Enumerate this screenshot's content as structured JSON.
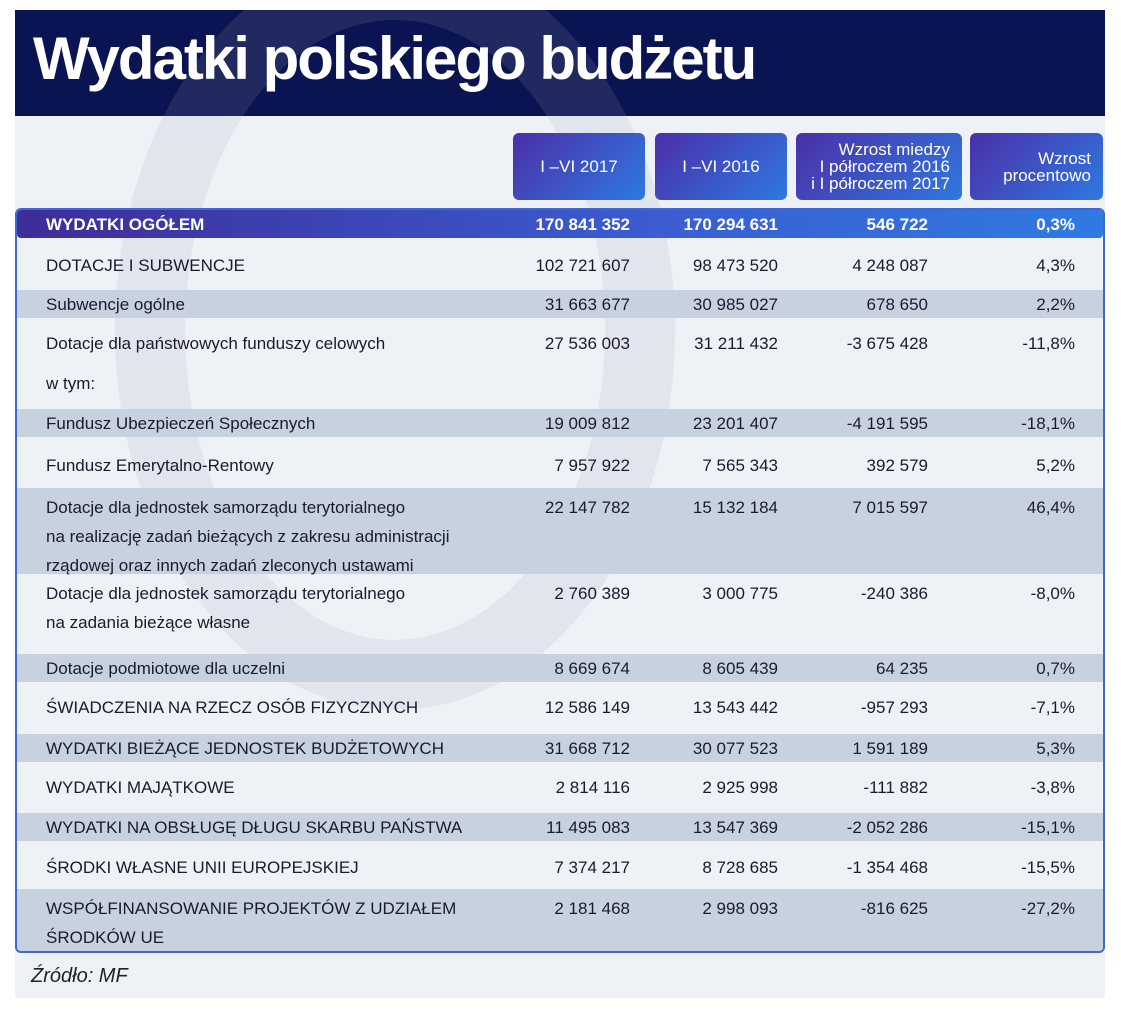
{
  "title": "Wydatki polskiego budżetu",
  "source": "Źródło: MF",
  "chart_data": {
    "type": "table",
    "columns": [
      "I –VI 2017",
      "I –VI 2016",
      "Wzrost miedzy\nI półroczem 2016\ni I półroczem 2017",
      "Wzrost\nprocentowo"
    ],
    "rows": [
      {
        "label": "WYDATKI OGÓŁEM",
        "values": [
          "170 841 352",
          "170 294 631",
          "546 722",
          "0,3%"
        ]
      },
      {
        "label": "DOTACJE I SUBWENCJE",
        "values": [
          "102 721 607",
          "98 473 520",
          "4 248 087",
          "4,3%"
        ]
      },
      {
        "label": "Subwencje ogólne",
        "values": [
          "31 663 677",
          "30 985 027",
          "678 650",
          "2,2%"
        ]
      },
      {
        "label": "Dotacje dla państwowych funduszy celowych",
        "values": [
          "27 536 003",
          "31 211 432",
          "-3 675 428",
          "-11,8%"
        ]
      },
      {
        "label": "w tym:",
        "values": [
          "",
          "",
          "",
          ""
        ]
      },
      {
        "label": "Fundusz Ubezpieczeń Społecznych",
        "values": [
          "19 009 812",
          "23 201 407",
          "-4 191 595",
          "-18,1%"
        ]
      },
      {
        "label": "Fundusz Emerytalno-Rentowy",
        "values": [
          "7 957 922",
          "7 565 343",
          "392 579",
          "5,2%"
        ]
      },
      {
        "label": "Dotacje dla jednostek samorządu terytorialnego\nna realizację zadań bieżących  z zakresu administracji\nrządowej oraz innych zadań zleconych ustawami",
        "values": [
          "22 147 782",
          "15 132 184",
          "7 015 597",
          "46,4%"
        ]
      },
      {
        "label": "Dotacje dla jednostek samorządu terytorialnego\nna zadania bieżące własne",
        "values": [
          "2 760 389",
          "3 000 775",
          "-240 386",
          "-8,0%"
        ]
      },
      {
        "label": "Dotacje podmiotowe dla uczelni",
        "values": [
          "8 669 674",
          "8 605 439",
          "64 235",
          "0,7%"
        ]
      },
      {
        "label": "ŚWIADCZENIA NA RZECZ OSÓB FIZYCZNYCH",
        "values": [
          "12 586 149",
          "13 543 442",
          "-957 293",
          "-7,1%"
        ]
      },
      {
        "label": "WYDATKI BIEŻĄCE JEDNOSTEK BUDŻETOWYCH",
        "values": [
          "31 668 712",
          "30 077 523",
          "1 591 189",
          "5,3%"
        ]
      },
      {
        "label": "WYDATKI MAJĄTKOWE",
        "values": [
          "2 814 116",
          "2 925 998",
          "-111 882",
          "-3,8%"
        ]
      },
      {
        "label": "WYDATKI NA OBSŁUGĘ DŁUGU SKARBU PAŃSTWA",
        "values": [
          "11 495 083",
          "13 547 369",
          "-2 052 286",
          "-15,1%"
        ]
      },
      {
        "label": "ŚRODKI WŁASNE UNII EUROPEJSKIEJ",
        "values": [
          "7 374 217",
          "8 728 685",
          "-1 354 468",
          "-15,5%"
        ]
      },
      {
        "label": "WSPÓŁFINANSOWANIE PROJEKTÓW Z UDZIAŁEM\nŚRODKÓW UE",
        "values": [
          "2 181 468",
          "2 998 093",
          "-816 625",
          "-27,2%"
        ]
      }
    ]
  },
  "colors": {
    "title_bg": "#0b1452",
    "stripe": "#c8d2de",
    "border": "#3f66d6",
    "header_gradient": [
      "#4b2fa8",
      "#2f78e0"
    ]
  }
}
